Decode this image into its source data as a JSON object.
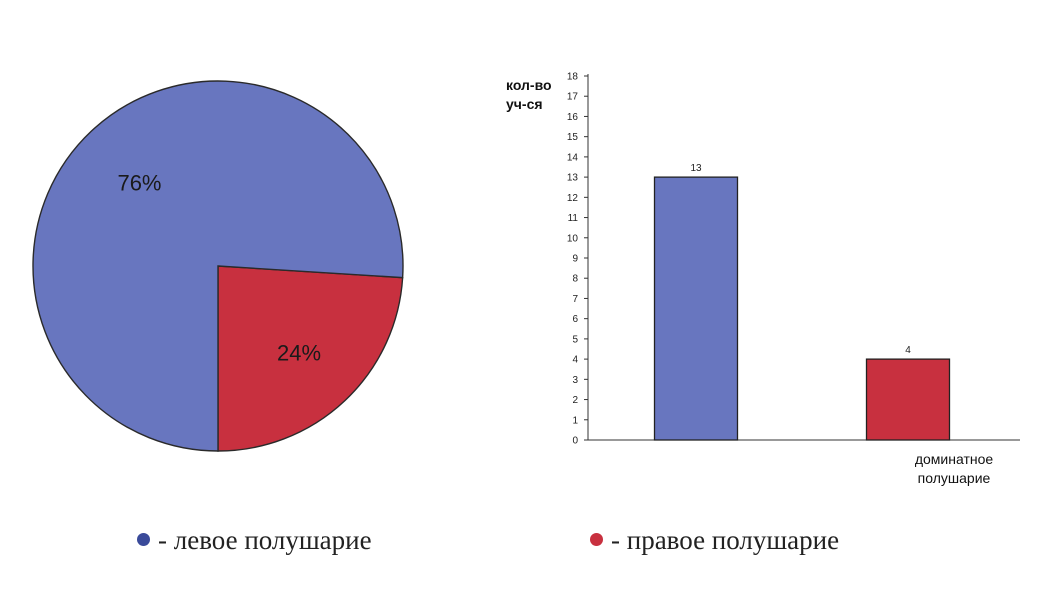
{
  "chart_data": [
    {
      "type": "pie",
      "slices": [
        {
          "label": "76%",
          "value": 76,
          "color": "#6876bf"
        },
        {
          "label": "24%",
          "value": 24,
          "color": "#c8303f"
        }
      ]
    },
    {
      "type": "bar",
      "ylabel": "кол-во уч-ся",
      "ylabel_lines": [
        "кол-во",
        "уч-ся"
      ],
      "xlabel": "доминатное полушарие",
      "xlabel_lines": [
        "доминатное",
        "полушарие"
      ],
      "ylim": [
        0,
        18
      ],
      "yticks": [
        0,
        1,
        2,
        3,
        4,
        5,
        6,
        7,
        8,
        9,
        10,
        11,
        12,
        13,
        14,
        15,
        16,
        17,
        18
      ],
      "bars": [
        {
          "value": 13,
          "label": "13",
          "color": "#6876bf"
        },
        {
          "value": 4,
          "label": "4",
          "color": "#c8303f"
        }
      ]
    }
  ],
  "legend": {
    "left": {
      "text": "- левое полушарие",
      "color": "#3a4a9a"
    },
    "right": {
      "text": "- правое полушарие",
      "color": "#c8303f"
    }
  }
}
